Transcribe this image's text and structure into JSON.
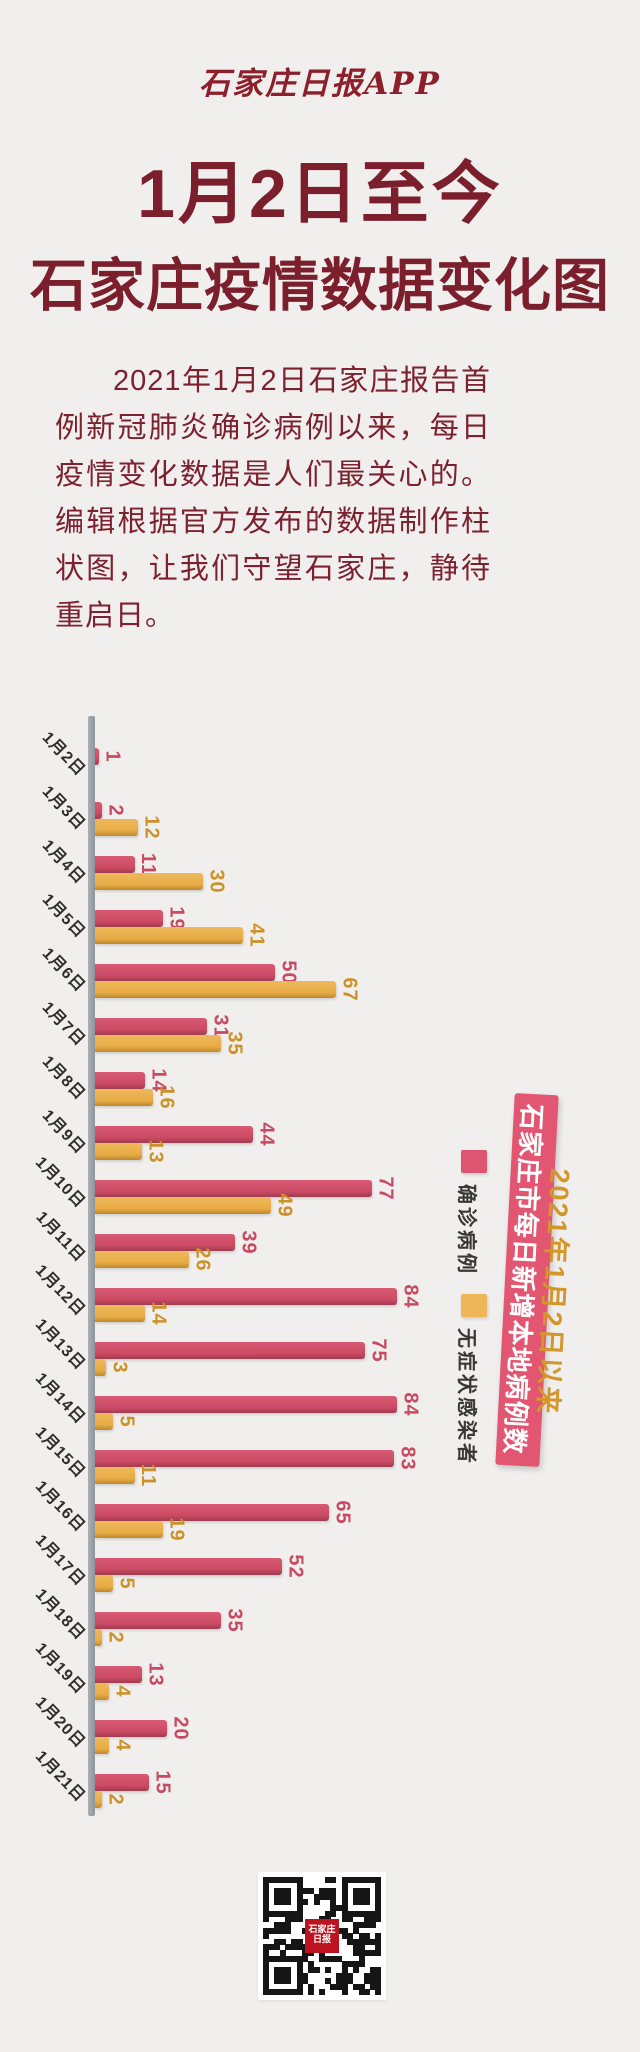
{
  "app": {
    "logo": "石家庄日报APP"
  },
  "header": {
    "title_line1": "1月2日至今",
    "title_line2": "石家庄疫情数据变化图"
  },
  "intro": {
    "text": "2021年1月2日石家庄报告首例新冠肺炎确诊病例以来，每日疫情变化数据是人们最关心的。编辑根据官方发布的数据制作柱状图，让我们守望石家庄，静待重启日。"
  },
  "chart_data": {
    "type": "bar",
    "orientation": "horizontal",
    "title_banner": "石家庄市每日新增本地病例数",
    "subtitle": "2021年1月2日以来",
    "categories": [
      "1月2日",
      "1月3日",
      "1月4日",
      "1月5日",
      "1月6日",
      "1月7日",
      "1月8日",
      "1月9日",
      "1月10日",
      "1月11日",
      "1月12日",
      "1月13日",
      "1月14日",
      "1月15日",
      "1月16日",
      "1月17日",
      "1月18日",
      "1月19日",
      "1月20日",
      "1月21日"
    ],
    "series": [
      {
        "name": "确诊病例",
        "color": "#cc4b64",
        "label_color": "#c84a62",
        "values": [
          1,
          2,
          11,
          19,
          50,
          31,
          14,
          44,
          77,
          39,
          84,
          75,
          84,
          83,
          65,
          52,
          35,
          13,
          20,
          15
        ]
      },
      {
        "name": "无症状感染者",
        "color": "#e8ab45",
        "label_color": "#cd9227",
        "values": [
          0,
          12,
          30,
          41,
          67,
          35,
          16,
          13,
          49,
          26,
          14,
          3,
          5,
          11,
          19,
          5,
          2,
          4,
          4,
          2
        ]
      }
    ],
    "xlim": [
      0,
      90
    ],
    "grid": false,
    "value_labels": true,
    "legend_position": "right"
  },
  "colors": {
    "background": "#f0efed",
    "title": "#7c1f2d",
    "bar_confirmed": "#cc4b64",
    "bar_asymptomatic": "#e8ab45",
    "banner": "#e25672",
    "subtitle_gold": "#d2962a",
    "axis": "#9aa1a7"
  },
  "footer": {
    "qr_logo_text": "石家庄日报"
  }
}
